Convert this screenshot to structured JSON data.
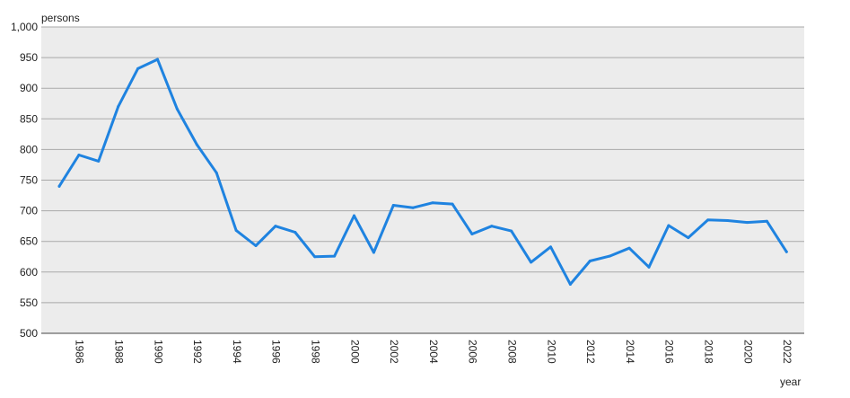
{
  "chart_data": {
    "type": "line",
    "ylabel": "persons",
    "xlabel": "year",
    "ylim": [
      500,
      1000
    ],
    "y_ticks": [
      500,
      550,
      600,
      650,
      700,
      750,
      800,
      850,
      900,
      950,
      1000
    ],
    "y_tick_labels": [
      "500",
      "550",
      "600",
      "650",
      "700",
      "750",
      "800",
      "850",
      "900",
      "950",
      "1,000"
    ],
    "x_ticks": [
      "1986",
      "1988",
      "1990",
      "1992",
      "1994",
      "1996",
      "1998",
      "2000",
      "2002",
      "2004",
      "2006",
      "2008",
      "2010",
      "2012",
      "2014",
      "2016",
      "2018",
      "2020",
      "2022"
    ],
    "grid": true,
    "series_color": "#1f83e0",
    "plot_background": "#ececec",
    "series": [
      {
        "x": [
          1985,
          1986,
          1987,
          1988,
          1989,
          1990,
          1991,
          1992,
          1993,
          1994,
          1995,
          1996,
          1997,
          1998,
          1999,
          2000,
          2001,
          2002,
          2003,
          2004,
          2005,
          2006,
          2007,
          2008,
          2009,
          2010,
          2011,
          2012,
          2013,
          2014,
          2015,
          2016,
          2017,
          2018,
          2019,
          2020,
          2021,
          2022
        ],
        "values": [
          740,
          791,
          781,
          870,
          932,
          947,
          866,
          808,
          762,
          668,
          643,
          675,
          665,
          625,
          626,
          692,
          632,
          709,
          705,
          713,
          711,
          662,
          675,
          667,
          616,
          641,
          580,
          618,
          626,
          639,
          608,
          676,
          656,
          685,
          684,
          681,
          683,
          633
        ]
      }
    ]
  }
}
